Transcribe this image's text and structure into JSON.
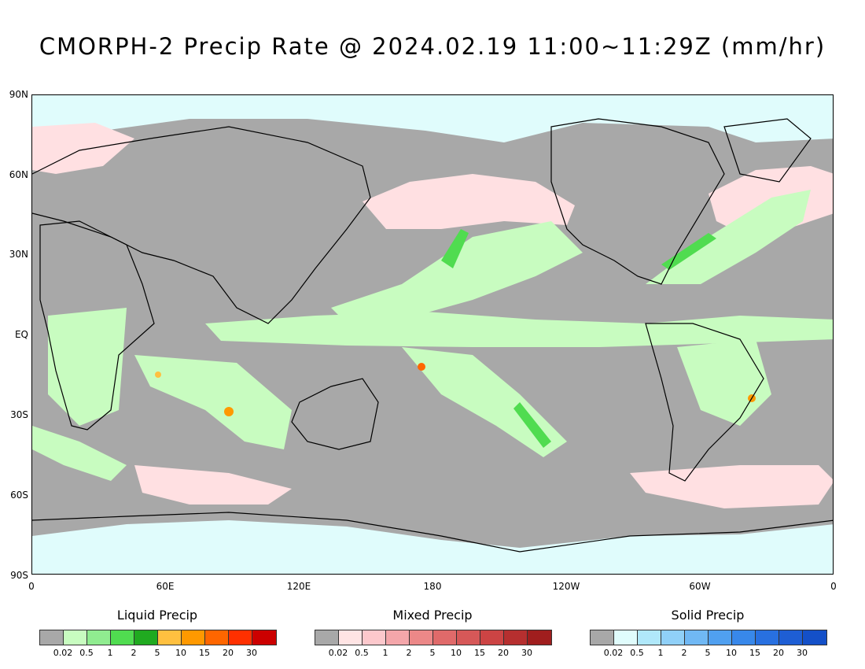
{
  "title": "CMORPH-2 Precip Rate @ 2024.02.19 11:00~11:29Z (mm/hr)",
  "axes": {
    "lat_labels": [
      "90N",
      "60N",
      "30N",
      "EQ",
      "30S",
      "60S",
      "90S"
    ],
    "lon_labels": [
      "0",
      "60E",
      "120E",
      "180",
      "120W",
      "60W",
      "0"
    ]
  },
  "legends": [
    {
      "title": "Liquid Precip",
      "labels": [
        "0.02",
        "0.5",
        "1",
        "2",
        "5",
        "10",
        "15",
        "20",
        "30"
      ],
      "colors": [
        "#a8a8a8",
        "#c8fcc0",
        "#90ec90",
        "#50dc50",
        "#20aa20",
        "#ffc040",
        "#ff9900",
        "#ff6600",
        "#ff3000",
        "#cc0000"
      ]
    },
    {
      "title": "Mixed Precip",
      "labels": [
        "0.02",
        "0.5",
        "1",
        "2",
        "5",
        "10",
        "15",
        "20",
        "30"
      ],
      "colors": [
        "#a8a8a8",
        "#ffe4e4",
        "#fcc8cc",
        "#f4a6aa",
        "#ec8888",
        "#e06a6a",
        "#d65858",
        "#cc4444",
        "#b62f2f",
        "#a01e1e"
      ]
    },
    {
      "title": "Solid Precip",
      "labels": [
        "0.02",
        "0.5",
        "1",
        "2",
        "5",
        "10",
        "15",
        "20",
        "30"
      ],
      "colors": [
        "#a8a8a8",
        "#e0fcfc",
        "#b0e8fa",
        "#90d0f8",
        "#70b8f4",
        "#50a0f0",
        "#3888ea",
        "#2870e0",
        "#1e5ed4",
        "#1450c8"
      ]
    }
  ],
  "colors": {
    "background_no_precip": "#a8a8a8",
    "coastline": "#000000"
  }
}
